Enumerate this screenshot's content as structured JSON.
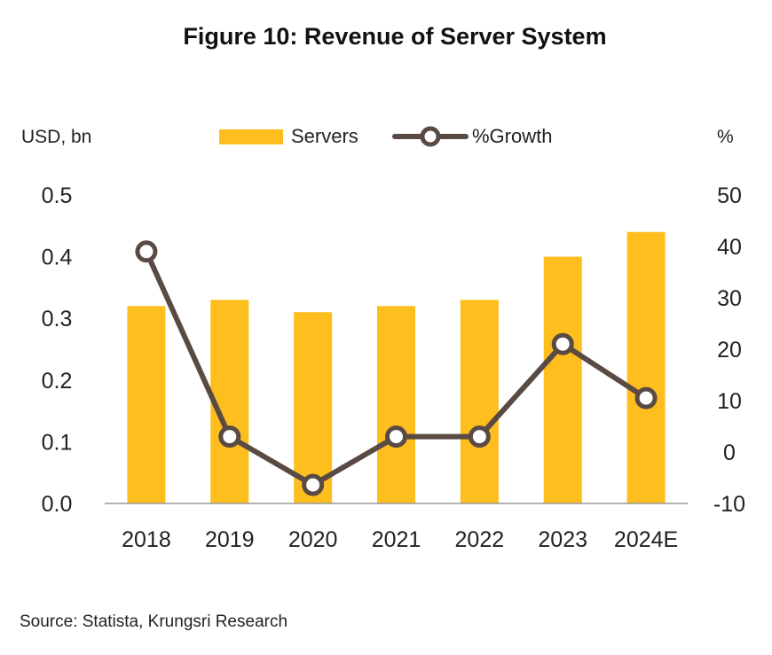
{
  "title": "Figure 10: Revenue of Server System",
  "source": "Source: Statista, Krungsri Research",
  "chart_data": {
    "type": "bar",
    "categories": [
      "2018",
      "2019",
      "2020",
      "2021",
      "2022",
      "2023",
      "2024E"
    ],
    "series": [
      {
        "name": "Servers",
        "type": "bar",
        "axis": "left",
        "color": "#FDBE1E",
        "values": [
          0.32,
          0.33,
          0.31,
          0.32,
          0.33,
          0.4,
          0.44
        ]
      },
      {
        "name": "%Growth",
        "type": "line",
        "axis": "right",
        "color": "#5A4A44",
        "values": [
          39,
          3,
          -6.4,
          3,
          3,
          21,
          10.5
        ]
      }
    ],
    "y_left": {
      "unit_label": "USD, bn",
      "min": 0,
      "max": 0.5,
      "ticks": [
        "0.0",
        "0.1",
        "0.2",
        "0.3",
        "0.4",
        "0.5"
      ]
    },
    "y_right": {
      "unit_label": "%",
      "min": -10,
      "max": 50,
      "ticks": [
        "-10",
        "0",
        "10",
        "20",
        "30",
        "40",
        "50"
      ]
    },
    "grid": false,
    "legend_position": "top-center"
  }
}
